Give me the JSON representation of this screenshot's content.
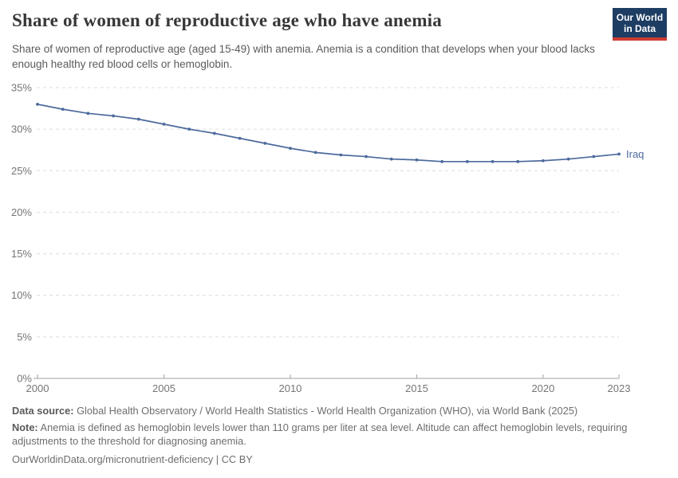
{
  "header": {
    "title": "Share of women of reproductive age who have anemia",
    "subtitle": "Share of women of reproductive age (aged 15-49) with anemia. Anemia is a condition that develops when your blood lacks enough healthy red blood cells or hemoglobin."
  },
  "logo": {
    "line1": "Our World",
    "line2": "in Data",
    "bg_color": "#1d3d63",
    "stripe_color": "#cf3b32"
  },
  "chart_data": {
    "type": "line",
    "title": "Share of women of reproductive age who have anemia",
    "x": [
      2000,
      2001,
      2002,
      2003,
      2004,
      2005,
      2006,
      2007,
      2008,
      2009,
      2010,
      2011,
      2012,
      2013,
      2014,
      2015,
      2016,
      2017,
      2018,
      2019,
      2020,
      2021,
      2022,
      2023
    ],
    "series": [
      {
        "name": "Iraq",
        "color": "#4c6a9c",
        "values": [
          33.0,
          32.4,
          31.9,
          31.6,
          31.2,
          30.6,
          30.0,
          29.5,
          28.9,
          28.3,
          27.7,
          27.2,
          26.9,
          26.7,
          26.4,
          26.3,
          26.1,
          26.1,
          26.1,
          26.1,
          26.2,
          26.4,
          26.7,
          27.0
        ]
      }
    ],
    "xlabel": "",
    "ylabel": "",
    "ylim": [
      0,
      35
    ],
    "yticks": [
      0,
      5,
      10,
      15,
      20,
      25,
      30,
      35
    ],
    "ytick_suffix": "%",
    "xticks": [
      2000,
      2005,
      2010,
      2015,
      2020,
      2023
    ],
    "grid": "dashed-horizontal",
    "legend_position": "end-of-line-label",
    "colors": {
      "gridline": "#dcdcdc",
      "axis": "#a1a1a1",
      "tick_label": "#757575"
    }
  },
  "footer": {
    "datasource_label": "Data source:",
    "datasource_text": " Global Health Observatory / World Health Statistics - World Health Organization (WHO), via World Bank (2025)",
    "note_label": "Note:",
    "note_text": " Anemia is defined as hemoglobin levels lower than 110 grams per liter at sea level. Altitude can affect hemoglobin levels, requiring adjustments to the threshold for diagnosing anemia.",
    "url": "OurWorldinData.org/micronutrient-deficiency",
    "separator": " | ",
    "license": "CC BY"
  }
}
